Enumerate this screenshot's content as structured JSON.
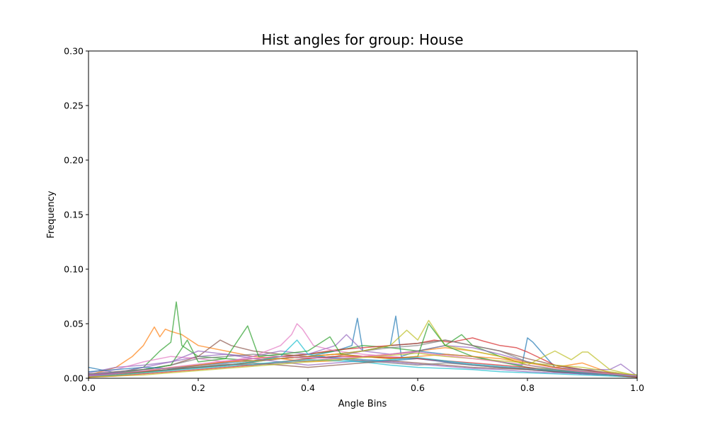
{
  "chart_data": {
    "type": "line",
    "title": "Hist angles for group: House",
    "xlabel": "Angle Bins",
    "ylabel": "Frequency",
    "xlim": [
      0.0,
      1.0
    ],
    "ylim": [
      0.0,
      0.3
    ],
    "x_ticks": [
      "0.0",
      "0.2",
      "0.4",
      "0.6",
      "0.8",
      "1.0"
    ],
    "y_ticks": [
      "0.00",
      "0.05",
      "0.10",
      "0.15",
      "0.20",
      "0.25",
      "0.30"
    ],
    "grid": false,
    "legend": "none",
    "series": [
      {
        "color": "#1f77b4",
        "x": [
          0.0,
          0.05,
          0.1,
          0.15,
          0.2,
          0.25,
          0.3,
          0.35,
          0.4,
          0.45,
          0.48,
          0.49,
          0.5,
          0.55,
          0.56,
          0.57,
          0.6,
          0.65,
          0.7,
          0.75,
          0.79,
          0.8,
          0.81,
          0.85,
          0.9,
          0.95,
          1.0
        ],
        "y": [
          0.01,
          0.005,
          0.006,
          0.008,
          0.01,
          0.012,
          0.015,
          0.018,
          0.02,
          0.025,
          0.03,
          0.055,
          0.025,
          0.03,
          0.057,
          0.02,
          0.025,
          0.022,
          0.02,
          0.015,
          0.012,
          0.037,
          0.033,
          0.01,
          0.006,
          0.004,
          0.002
        ]
      },
      {
        "color": "#ff7f0e",
        "x": [
          0.0,
          0.05,
          0.08,
          0.1,
          0.12,
          0.13,
          0.14,
          0.15,
          0.17,
          0.2,
          0.25,
          0.3,
          0.35,
          0.4,
          0.45,
          0.5,
          0.55,
          0.6,
          0.65,
          0.7,
          0.75,
          0.8,
          0.85,
          0.9,
          0.95,
          1.0
        ],
        "y": [
          0.003,
          0.01,
          0.02,
          0.03,
          0.047,
          0.038,
          0.045,
          0.043,
          0.04,
          0.03,
          0.025,
          0.02,
          0.018,
          0.015,
          0.016,
          0.02,
          0.022,
          0.025,
          0.028,
          0.025,
          0.02,
          0.015,
          0.01,
          0.014,
          0.005,
          0.002
        ]
      },
      {
        "color": "#2ca02c",
        "x": [
          0.0,
          0.05,
          0.1,
          0.13,
          0.15,
          0.16,
          0.17,
          0.2,
          0.25,
          0.3,
          0.35,
          0.4,
          0.45,
          0.5,
          0.55,
          0.6,
          0.65,
          0.68,
          0.7,
          0.75,
          0.8,
          0.85,
          0.9,
          0.95,
          1.0
        ],
        "y": [
          0.002,
          0.005,
          0.01,
          0.025,
          0.033,
          0.07,
          0.03,
          0.02,
          0.018,
          0.016,
          0.02,
          0.022,
          0.025,
          0.03,
          0.028,
          0.025,
          0.03,
          0.04,
          0.03,
          0.02,
          0.012,
          0.008,
          0.005,
          0.003,
          0.001
        ]
      },
      {
        "color": "#d62728",
        "x": [
          0.0,
          0.05,
          0.1,
          0.15,
          0.2,
          0.25,
          0.3,
          0.35,
          0.4,
          0.45,
          0.5,
          0.55,
          0.6,
          0.63,
          0.66,
          0.7,
          0.72,
          0.75,
          0.78,
          0.8,
          0.85,
          0.9,
          0.95,
          1.0
        ],
        "y": [
          0.003,
          0.004,
          0.006,
          0.008,
          0.012,
          0.015,
          0.018,
          0.02,
          0.022,
          0.026,
          0.028,
          0.03,
          0.032,
          0.035,
          0.033,
          0.037,
          0.034,
          0.03,
          0.028,
          0.024,
          0.012,
          0.008,
          0.004,
          0.002
        ]
      },
      {
        "color": "#9467bd",
        "x": [
          0.0,
          0.05,
          0.1,
          0.15,
          0.2,
          0.25,
          0.3,
          0.35,
          0.4,
          0.45,
          0.47,
          0.5,
          0.55,
          0.6,
          0.65,
          0.7,
          0.75,
          0.8,
          0.85,
          0.9,
          0.95,
          0.97,
          1.0
        ],
        "y": [
          0.005,
          0.01,
          0.012,
          0.015,
          0.02,
          0.022,
          0.02,
          0.025,
          0.022,
          0.03,
          0.04,
          0.025,
          0.022,
          0.025,
          0.03,
          0.028,
          0.022,
          0.015,
          0.01,
          0.008,
          0.008,
          0.013,
          0.002
        ]
      },
      {
        "color": "#8c564b",
        "x": [
          0.0,
          0.05,
          0.1,
          0.15,
          0.2,
          0.24,
          0.26,
          0.3,
          0.35,
          0.4,
          0.45,
          0.5,
          0.55,
          0.6,
          0.65,
          0.7,
          0.75,
          0.8,
          0.85,
          0.9,
          0.95,
          1.0
        ],
        "y": [
          0.002,
          0.006,
          0.008,
          0.012,
          0.02,
          0.035,
          0.03,
          0.025,
          0.022,
          0.02,
          0.022,
          0.025,
          0.03,
          0.032,
          0.035,
          0.03,
          0.025,
          0.018,
          0.012,
          0.008,
          0.005,
          0.002
        ]
      },
      {
        "color": "#e377c2",
        "x": [
          0.0,
          0.05,
          0.1,
          0.15,
          0.2,
          0.25,
          0.3,
          0.35,
          0.37,
          0.38,
          0.39,
          0.41,
          0.45,
          0.5,
          0.55,
          0.6,
          0.65,
          0.7,
          0.75,
          0.8,
          0.85,
          0.9,
          0.95,
          1.0
        ],
        "y": [
          0.003,
          0.008,
          0.015,
          0.02,
          0.018,
          0.015,
          0.02,
          0.03,
          0.04,
          0.05,
          0.045,
          0.03,
          0.025,
          0.022,
          0.02,
          0.018,
          0.015,
          0.012,
          0.01,
          0.008,
          0.006,
          0.004,
          0.003,
          0.001
        ]
      },
      {
        "color": "#7f7f7f",
        "x": [
          0.0,
          0.05,
          0.1,
          0.15,
          0.2,
          0.25,
          0.3,
          0.35,
          0.4,
          0.45,
          0.5,
          0.55,
          0.6,
          0.65,
          0.7,
          0.75,
          0.8,
          0.85,
          0.9,
          0.95,
          1.0
        ],
        "y": [
          0.004,
          0.005,
          0.008,
          0.012,
          0.018,
          0.02,
          0.022,
          0.02,
          0.018,
          0.02,
          0.025,
          0.028,
          0.03,
          0.035,
          0.03,
          0.025,
          0.015,
          0.01,
          0.007,
          0.004,
          0.002
        ]
      },
      {
        "color": "#bcbd22",
        "x": [
          0.0,
          0.05,
          0.1,
          0.15,
          0.2,
          0.25,
          0.3,
          0.35,
          0.4,
          0.45,
          0.5,
          0.55,
          0.58,
          0.6,
          0.62,
          0.65,
          0.7,
          0.75,
          0.8,
          0.83,
          0.85,
          0.88,
          0.9,
          0.91,
          0.95,
          1.0
        ],
        "y": [
          0.002,
          0.003,
          0.005,
          0.008,
          0.01,
          0.012,
          0.015,
          0.018,
          0.02,
          0.022,
          0.025,
          0.03,
          0.044,
          0.035,
          0.053,
          0.03,
          0.025,
          0.02,
          0.012,
          0.02,
          0.025,
          0.017,
          0.024,
          0.024,
          0.008,
          0.002
        ]
      },
      {
        "color": "#17becf",
        "x": [
          0.0,
          0.05,
          0.1,
          0.15,
          0.2,
          0.25,
          0.3,
          0.35,
          0.38,
          0.4,
          0.45,
          0.5,
          0.55,
          0.6,
          0.65,
          0.7,
          0.75,
          0.8,
          0.85,
          0.9,
          0.95,
          1.0
        ],
        "y": [
          0.002,
          0.004,
          0.006,
          0.008,
          0.01,
          0.012,
          0.015,
          0.02,
          0.035,
          0.022,
          0.018,
          0.015,
          0.012,
          0.01,
          0.009,
          0.008,
          0.006,
          0.005,
          0.004,
          0.003,
          0.002,
          0.001
        ]
      },
      {
        "color": "#2ca02c",
        "x": [
          0.0,
          0.05,
          0.1,
          0.15,
          0.18,
          0.2,
          0.25,
          0.29,
          0.31,
          0.35,
          0.4,
          0.44,
          0.46,
          0.5,
          0.55,
          0.6,
          0.62,
          0.65,
          0.7,
          0.75,
          0.8,
          0.85,
          0.9,
          0.95,
          1.0
        ],
        "y": [
          0.001,
          0.004,
          0.008,
          0.012,
          0.035,
          0.015,
          0.018,
          0.048,
          0.02,
          0.022,
          0.025,
          0.038,
          0.022,
          0.02,
          0.018,
          0.02,
          0.05,
          0.03,
          0.02,
          0.015,
          0.01,
          0.006,
          0.004,
          0.003,
          0.001
        ]
      },
      {
        "color": "#1f77b4",
        "x": [
          0.0,
          0.05,
          0.1,
          0.15,
          0.2,
          0.25,
          0.3,
          0.35,
          0.4,
          0.45,
          0.5,
          0.55,
          0.6,
          0.65,
          0.7,
          0.75,
          0.8,
          0.85,
          0.9,
          0.95,
          1.0
        ],
        "y": [
          0.006,
          0.008,
          0.01,
          0.009,
          0.012,
          0.014,
          0.016,
          0.018,
          0.02,
          0.019,
          0.017,
          0.016,
          0.018,
          0.015,
          0.012,
          0.01,
          0.008,
          0.006,
          0.004,
          0.003,
          0.002
        ]
      },
      {
        "color": "#ff7f0e",
        "x": [
          0.0,
          0.05,
          0.1,
          0.15,
          0.2,
          0.25,
          0.3,
          0.35,
          0.4,
          0.45,
          0.5,
          0.55,
          0.6,
          0.65,
          0.7,
          0.75,
          0.8,
          0.85,
          0.9,
          0.95,
          1.0
        ],
        "y": [
          0.001,
          0.003,
          0.006,
          0.01,
          0.012,
          0.015,
          0.016,
          0.018,
          0.02,
          0.022,
          0.02,
          0.018,
          0.02,
          0.022,
          0.02,
          0.018,
          0.014,
          0.01,
          0.006,
          0.004,
          0.002
        ]
      },
      {
        "color": "#8c564b",
        "x": [
          0.0,
          0.05,
          0.1,
          0.15,
          0.2,
          0.25,
          0.3,
          0.35,
          0.4,
          0.45,
          0.5,
          0.55,
          0.6,
          0.65,
          0.7,
          0.75,
          0.8,
          0.85,
          0.9,
          0.95,
          1.0
        ],
        "y": [
          0.002,
          0.004,
          0.006,
          0.008,
          0.01,
          0.012,
          0.014,
          0.012,
          0.01,
          0.012,
          0.014,
          0.016,
          0.014,
          0.012,
          0.01,
          0.009,
          0.008,
          0.006,
          0.005,
          0.003,
          0.002
        ]
      },
      {
        "color": "#9467bd",
        "x": [
          0.0,
          0.05,
          0.1,
          0.15,
          0.2,
          0.25,
          0.3,
          0.35,
          0.4,
          0.45,
          0.5,
          0.55,
          0.6,
          0.65,
          0.7,
          0.75,
          0.8,
          0.85,
          0.9,
          0.95,
          1.0
        ],
        "y": [
          0.003,
          0.005,
          0.01,
          0.015,
          0.025,
          0.022,
          0.018,
          0.015,
          0.012,
          0.014,
          0.016,
          0.015,
          0.013,
          0.011,
          0.009,
          0.008,
          0.006,
          0.005,
          0.004,
          0.003,
          0.002
        ]
      },
      {
        "color": "#d62728",
        "x": [
          0.0,
          0.05,
          0.1,
          0.15,
          0.2,
          0.25,
          0.3,
          0.35,
          0.4,
          0.45,
          0.5,
          0.55,
          0.6,
          0.65,
          0.7,
          0.75,
          0.8,
          0.85,
          0.9,
          0.95,
          1.0
        ],
        "y": [
          0.001,
          0.002,
          0.004,
          0.006,
          0.008,
          0.01,
          0.012,
          0.015,
          0.018,
          0.02,
          0.02,
          0.019,
          0.018,
          0.016,
          0.014,
          0.012,
          0.01,
          0.007,
          0.005,
          0.003,
          0.001
        ]
      },
      {
        "color": "#17becf",
        "x": [
          0.0,
          0.05,
          0.1,
          0.15,
          0.2,
          0.25,
          0.3,
          0.35,
          0.4,
          0.45,
          0.5,
          0.55,
          0.6,
          0.65,
          0.7,
          0.75,
          0.8,
          0.85,
          0.9,
          0.95,
          1.0
        ],
        "y": [
          0.002,
          0.003,
          0.005,
          0.007,
          0.009,
          0.011,
          0.013,
          0.015,
          0.017,
          0.016,
          0.015,
          0.017,
          0.019,
          0.016,
          0.013,
          0.011,
          0.009,
          0.007,
          0.005,
          0.003,
          0.002
        ]
      },
      {
        "color": "#7f7f7f",
        "x": [
          0.0,
          0.05,
          0.1,
          0.15,
          0.2,
          0.25,
          0.3,
          0.35,
          0.4,
          0.45,
          0.5,
          0.55,
          0.6,
          0.65,
          0.7,
          0.75,
          0.8,
          0.85,
          0.9,
          0.95,
          1.0
        ],
        "y": [
          0.004,
          0.006,
          0.008,
          0.009,
          0.011,
          0.013,
          0.012,
          0.014,
          0.016,
          0.018,
          0.016,
          0.014,
          0.012,
          0.014,
          0.012,
          0.01,
          0.009,
          0.008,
          0.006,
          0.004,
          0.003
        ]
      },
      {
        "color": "#bcbd22",
        "x": [
          0.0,
          0.05,
          0.1,
          0.15,
          0.2,
          0.25,
          0.3,
          0.35,
          0.4,
          0.45,
          0.5,
          0.55,
          0.6,
          0.65,
          0.7,
          0.75,
          0.8,
          0.85,
          0.9,
          0.95,
          1.0
        ],
        "y": [
          0.001,
          0.002,
          0.003,
          0.005,
          0.007,
          0.009,
          0.011,
          0.013,
          0.015,
          0.017,
          0.019,
          0.021,
          0.023,
          0.02,
          0.018,
          0.016,
          0.014,
          0.012,
          0.01,
          0.006,
          0.003
        ]
      },
      {
        "color": "#e377c2",
        "x": [
          0.0,
          0.05,
          0.1,
          0.15,
          0.2,
          0.25,
          0.3,
          0.35,
          0.4,
          0.45,
          0.5,
          0.55,
          0.6,
          0.65,
          0.7,
          0.75,
          0.8,
          0.85,
          0.9,
          0.95,
          1.0
        ],
        "y": [
          0.002,
          0.004,
          0.007,
          0.01,
          0.013,
          0.016,
          0.018,
          0.02,
          0.019,
          0.018,
          0.02,
          0.022,
          0.024,
          0.021,
          0.018,
          0.015,
          0.012,
          0.009,
          0.006,
          0.004,
          0.002
        ]
      }
    ]
  }
}
